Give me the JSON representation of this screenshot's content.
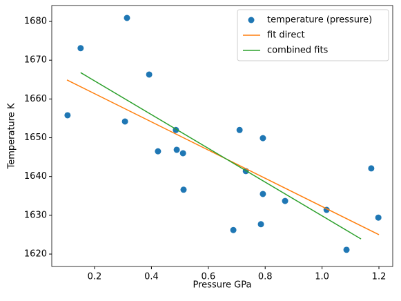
{
  "chart_data": {
    "type": "scatter",
    "xlabel": "Pressure GPa",
    "ylabel": "Temperature K",
    "xlim": [
      0.0495,
      1.2485
    ],
    "ylim": [
      1616.8,
      1684.1
    ],
    "xticks": [
      0.2,
      0.4,
      0.6,
      0.8,
      {
        "value": 1.0,
        "label": "1.0"
      },
      1.2
    ],
    "yticks": [
      1620,
      1630,
      1640,
      1650,
      1660,
      1670,
      1680
    ],
    "legend": "upper right",
    "series": [
      {
        "name": "temperature (pressure)",
        "type": "scatter",
        "color": "#1f77b4",
        "x": [
          0.105,
          0.151,
          0.314,
          0.307,
          0.392,
          0.423,
          0.486,
          0.489,
          0.511,
          0.513,
          0.688,
          0.71,
          0.732,
          0.785,
          0.792,
          0.792,
          0.87,
          1.016,
          1.086,
          1.173,
          1.198
        ],
        "values": [
          1655.8,
          1673.1,
          1680.9,
          1654.2,
          1666.3,
          1646.5,
          1652.0,
          1646.9,
          1646.0,
          1636.6,
          1626.2,
          1652.0,
          1641.4,
          1627.7,
          1649.9,
          1635.5,
          1633.7,
          1631.4,
          1621.1,
          1642.1,
          1629.4
        ]
      },
      {
        "name": "fit direct",
        "type": "line",
        "color": "#ff7f0e",
        "x": [
          0.103,
          1.2
        ],
        "values": [
          1664.9,
          1625.0
        ]
      },
      {
        "name": "combined fits",
        "type": "line",
        "color": "#2ca02c",
        "x": [
          0.151,
          1.137
        ],
        "values": [
          1666.8,
          1623.9
        ]
      }
    ]
  }
}
